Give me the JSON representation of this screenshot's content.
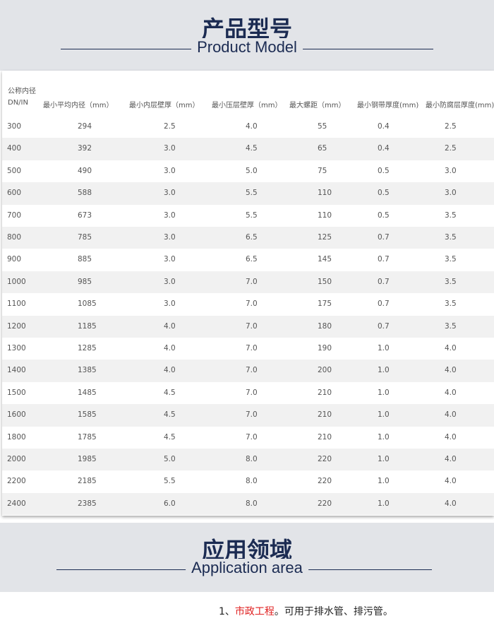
{
  "header": {
    "title": "产品型号",
    "subtitle": "Product Model"
  },
  "table": {
    "columns": [
      [
        "公称内径",
        "DN/IN"
      ],
      [
        "最小平均内径（mm）"
      ],
      [
        "最小内层壁厚（mm）"
      ],
      [
        "最小压层壁厚（mm）"
      ],
      [
        "最大螺距（mm）"
      ],
      [
        "最小钢带厚度(mm)"
      ],
      [
        "最小防腐层厚度(mm)"
      ]
    ],
    "rows": [
      [
        "300",
        "294",
        "2.5",
        "4.0",
        "55",
        "0.4",
        "2.5"
      ],
      [
        "400",
        "392",
        "3.0",
        "4.5",
        "65",
        "0.4",
        "2.5"
      ],
      [
        "500",
        "490",
        "3.0",
        "5.0",
        "75",
        "0.5",
        "3.0"
      ],
      [
        "600",
        "588",
        "3.0",
        "5.5",
        "110",
        "0.5",
        "3.0"
      ],
      [
        "700",
        "673",
        "3.0",
        "5.5",
        "110",
        "0.5",
        "3.5"
      ],
      [
        "800",
        "785",
        "3.0",
        "6.5",
        "125",
        "0.7",
        "3.5"
      ],
      [
        "900",
        "885",
        "3.0",
        "6.5",
        "145",
        "0.7",
        "3.5"
      ],
      [
        "1000",
        "985",
        "3.0",
        "7.0",
        "150",
        "0.7",
        "3.5"
      ],
      [
        "1100",
        "1085",
        "3.0",
        "7.0",
        "175",
        "0.7",
        "3.5"
      ],
      [
        "1200",
        "1185",
        "4.0",
        "7.0",
        "180",
        "0.7",
        "3.5"
      ],
      [
        "1300",
        "1285",
        "4.0",
        "7.0",
        "190",
        "1.0",
        "4.0"
      ],
      [
        "1400",
        "1385",
        "4.0",
        "7.0",
        "200",
        "1.0",
        "4.0"
      ],
      [
        "1500",
        "1485",
        "4.5",
        "7.0",
        "210",
        "1.0",
        "4.0"
      ],
      [
        "1600",
        "1585",
        "4.5",
        "7.0",
        "210",
        "1.0",
        "4.0"
      ],
      [
        "1800",
        "1785",
        "4.5",
        "7.0",
        "210",
        "1.0",
        "4.0"
      ],
      [
        "2000",
        "1985",
        "5.0",
        "8.0",
        "220",
        "1.0",
        "4.0"
      ],
      [
        "2200",
        "2185",
        "5.5",
        "8.0",
        "220",
        "1.0",
        "4.0"
      ],
      [
        "2400",
        "2385",
        "6.0",
        "8.0",
        "220",
        "1.0",
        "4.0"
      ]
    ]
  },
  "application": {
    "title": "应用领域",
    "subtitle": "Application area",
    "items": [
      {
        "number": "1、",
        "highlight": "市政工程",
        "text": "。可用于排水管、排污管。"
      }
    ]
  }
}
